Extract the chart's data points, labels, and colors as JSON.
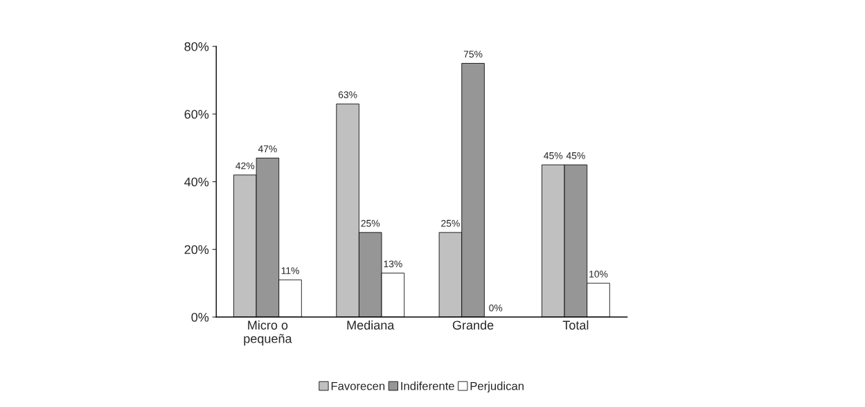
{
  "chart_data": {
    "type": "bar",
    "categories": [
      "Micro o\npequeña",
      "Mediana",
      "Grande",
      "Total"
    ],
    "series": [
      {
        "name": "Favorecen",
        "color": "#c0c0c0",
        "values": [
          42,
          63,
          25,
          45
        ],
        "value_labels": [
          "42%",
          "63%",
          "25%",
          "45%"
        ]
      },
      {
        "name": "Indiferente",
        "color": "#969696",
        "values": [
          47,
          25,
          75,
          45
        ],
        "value_labels": [
          "47%",
          "25%",
          "75%",
          "45%"
        ]
      },
      {
        "name": "Perjudican",
        "color": "#ffffff",
        "values": [
          11,
          13,
          0,
          10
        ],
        "value_labels": [
          "11%",
          "13%",
          "0%",
          "10%"
        ]
      }
    ],
    "ylim": [
      0,
      80
    ],
    "yticks": [
      {
        "value": 0,
        "label": "0%"
      },
      {
        "value": 20,
        "label": "20%"
      },
      {
        "value": 40,
        "label": "40%"
      },
      {
        "value": 60,
        "label": "60%"
      },
      {
        "value": 80,
        "label": "80%"
      }
    ],
    "grid": false,
    "legend": "bottom"
  }
}
